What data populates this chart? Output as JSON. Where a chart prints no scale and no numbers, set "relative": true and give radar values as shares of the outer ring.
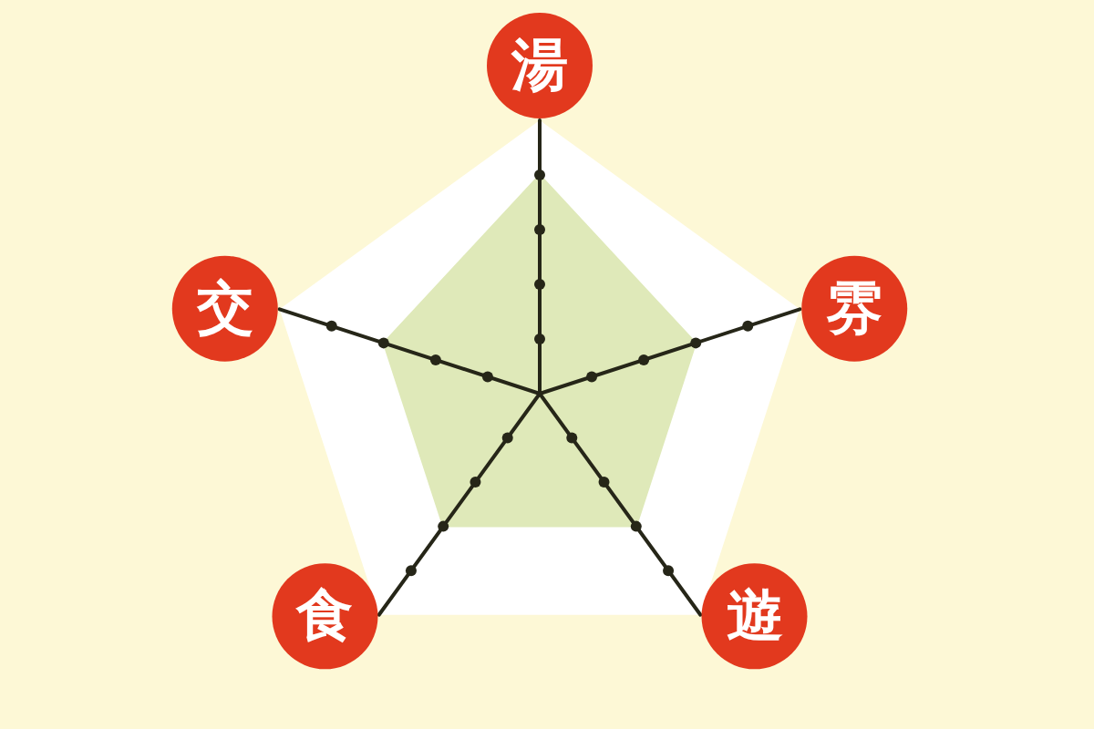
{
  "chart_data": {
    "type": "radar",
    "categories": [
      "湯",
      "雰",
      "遊",
      "食",
      "交"
    ],
    "relative": true,
    "series": [
      {
        "color": "#dfe9b9",
        "values": [
          0.8,
          0.6,
          0.6,
          0.6,
          0.6
        ]
      }
    ]
  }
}
